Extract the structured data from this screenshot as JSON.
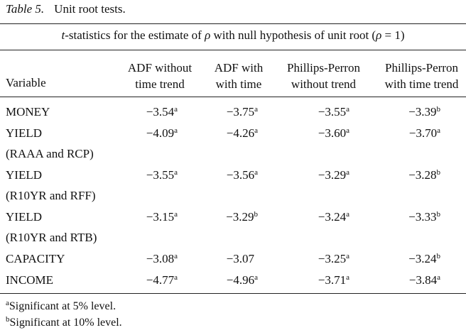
{
  "caption": {
    "label": "Table 5.",
    "title": "Unit root tests."
  },
  "subtitle": {
    "t_italic": "t",
    "text_before_rho": "-statistics for the estimate of ",
    "rho": "ρ",
    "text_after_rho": " with null hypothesis of unit root (",
    "rho2": "ρ",
    "text_end": " = 1)"
  },
  "headers": {
    "variable": "Variable",
    "columns": [
      {
        "line1": "ADF without",
        "line2": "time trend"
      },
      {
        "line1": "ADF with",
        "line2": "with time"
      },
      {
        "line1": "Phillips-Perron",
        "line2": "without trend"
      },
      {
        "line1": "Phillips-Perron",
        "line2": "with time trend"
      }
    ]
  },
  "rows": [
    {
      "variable": "MONEY",
      "cells": [
        {
          "v": "−3.54",
          "s": "a"
        },
        {
          "v": "−3.75",
          "s": "a"
        },
        {
          "v": "−3.55",
          "s": "a"
        },
        {
          "v": "−3.39",
          "s": "b"
        }
      ]
    },
    {
      "variable": "YIELD",
      "cells": [
        {
          "v": "−4.09",
          "s": "a"
        },
        {
          "v": "−4.26",
          "s": "a"
        },
        {
          "v": "−3.60",
          "s": "a"
        },
        {
          "v": "−3.70",
          "s": "a"
        }
      ]
    },
    {
      "variable": "(RAAA and RCP)",
      "cells": []
    },
    {
      "variable": "YIELD",
      "cells": [
        {
          "v": "−3.55",
          "s": "a"
        },
        {
          "v": "−3.56",
          "s": "a"
        },
        {
          "v": "−3.29",
          "s": "a"
        },
        {
          "v": "−3.28",
          "s": "b"
        }
      ]
    },
    {
      "variable": "(R10YR and RFF)",
      "cells": []
    },
    {
      "variable": "YIELD",
      "cells": [
        {
          "v": "−3.15",
          "s": "a"
        },
        {
          "v": "−3.29",
          "s": "b"
        },
        {
          "v": "−3.24",
          "s": "a"
        },
        {
          "v": "−3.33",
          "s": "b"
        }
      ]
    },
    {
      "variable": "(R10YR and RTB)",
      "cells": []
    },
    {
      "variable": "CAPACITY",
      "cells": [
        {
          "v": "−3.08",
          "s": "a"
        },
        {
          "v": "−3.07",
          "s": ""
        },
        {
          "v": "−3.25",
          "s": "a"
        },
        {
          "v": "−3.24",
          "s": "b"
        }
      ]
    },
    {
      "variable": "INCOME",
      "cells": [
        {
          "v": "−4.77",
          "s": "a"
        },
        {
          "v": "−4.96",
          "s": "a"
        },
        {
          "v": "−3.71",
          "s": "a"
        },
        {
          "v": "−3.84",
          "s": "a"
        }
      ]
    }
  ],
  "footnotes": [
    {
      "mark": "a",
      "text": "Significant at 5% level."
    },
    {
      "mark": "b",
      "text": "Significant at 10% level."
    }
  ]
}
